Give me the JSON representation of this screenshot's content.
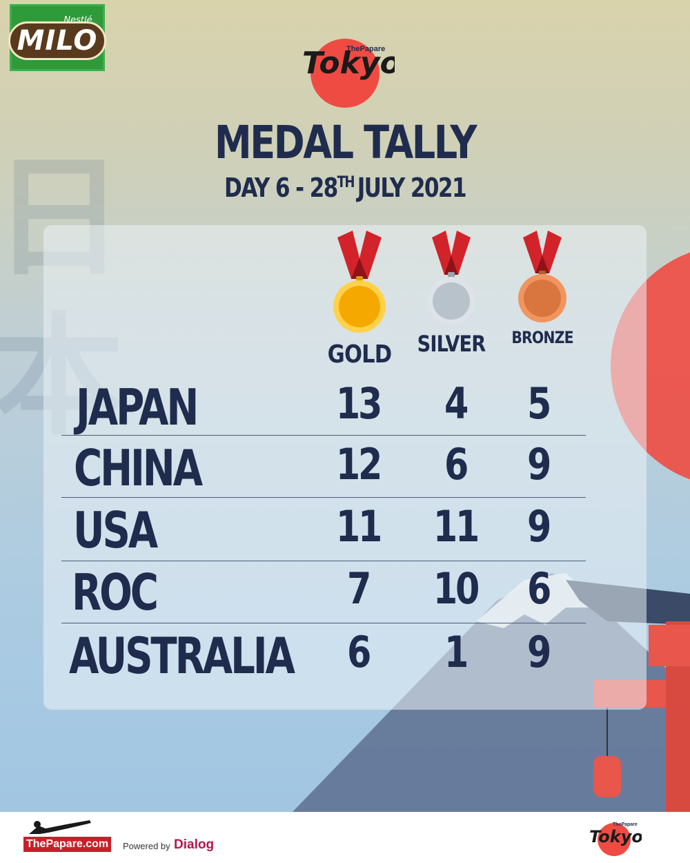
{
  "brand": {
    "sponsor_top": "Nestlé",
    "sponsor_name": "MILO",
    "event_logo_small": "ThePapare",
    "event_logo_big": "Tokyo"
  },
  "header": {
    "title": "MEDAL TALLY",
    "subtitle_prefix": "DAY 6 - 28",
    "subtitle_sup": "TH",
    "subtitle_suffix": "JULY 2021"
  },
  "background": {
    "kanji": [
      "日",
      "本"
    ]
  },
  "medals": [
    {
      "label": "GOLD",
      "color": "#f5b800",
      "ribbon": "#d2232a",
      "icon": "gold-medal-icon"
    },
    {
      "label": "SILVER",
      "color": "#c3ccd3",
      "ribbon": "#d2232a",
      "icon": "silver-medal-icon"
    },
    {
      "label": "BRONZE",
      "color": "#e07d45",
      "ribbon": "#d2232a",
      "icon": "bronze-medal-icon"
    }
  ],
  "table": {
    "rows": [
      {
        "country": "JAPAN",
        "gold": "13",
        "silver": "4",
        "bronze": "5"
      },
      {
        "country": "CHINA",
        "gold": "12",
        "silver": "6",
        "bronze": "9"
      },
      {
        "country": "USA",
        "gold": "11",
        "silver": "11",
        "bronze": "9"
      },
      {
        "country": "ROC",
        "gold": "7",
        "silver": "10",
        "bronze": "6"
      },
      {
        "country": "AUSTRALIA",
        "gold": "6",
        "silver": "1",
        "bronze": "9"
      }
    ]
  },
  "footer": {
    "site": "ThePapare.com",
    "powered_by": "Powered by",
    "partner": "Dialog",
    "event_logo_small": "ThePapare",
    "event_logo_big": "Tokyo"
  },
  "colors": {
    "text_dark": "#1f2c4d",
    "sun_red": "#ef4b43",
    "brand_green": "#2f9a3a"
  }
}
